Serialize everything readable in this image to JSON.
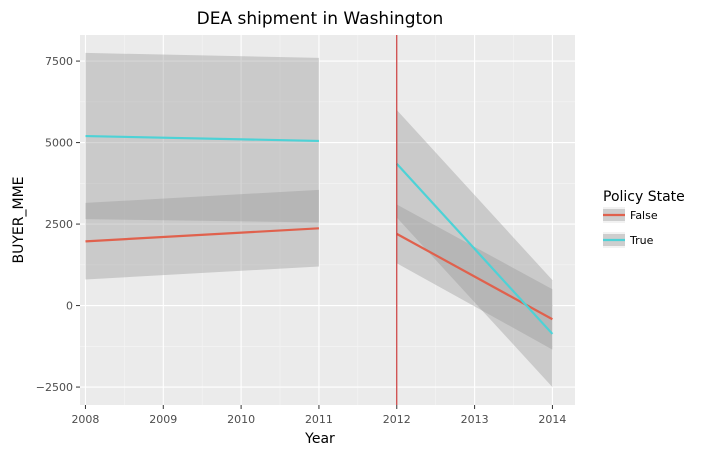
{
  "chart_data": {
    "type": "line",
    "title": "DEA shipment in Washington",
    "xlabel": "Year",
    "ylabel": "BUYER_MME",
    "x_ticks": [
      2008,
      2009,
      2010,
      2011,
      2012,
      2013,
      2014
    ],
    "y_ticks": [
      -2500,
      0,
      2500,
      5000,
      7500
    ],
    "y_tick_labels": [
      "−2500",
      "0",
      "2500",
      "5000",
      "7500"
    ],
    "xlim": [
      2007.93,
      2014.29
    ],
    "ylim": [
      -3050,
      8300
    ],
    "grid": true,
    "vline": {
      "x": 2012,
      "color": "#c62828"
    },
    "legend": {
      "title": "Policy State",
      "placement": "right"
    },
    "series": [
      {
        "name": "False",
        "color": "#e0614d",
        "segments": [
          {
            "x": [
              2008,
              2011
            ],
            "y": [
              1970,
              2370
            ],
            "ci_lower": [
              800,
              1200
            ],
            "ci_upper": [
              3150,
              3550
            ]
          },
          {
            "x": [
              2012,
              2014
            ],
            "y": [
              2200,
              -420
            ],
            "ci_lower": [
              1300,
              -1350
            ],
            "ci_upper": [
              3100,
              500
            ]
          }
        ]
      },
      {
        "name": "True",
        "color": "#4dd2d6",
        "segments": [
          {
            "x": [
              2008,
              2011
            ],
            "y": [
              5200,
              5050
            ],
            "ci_lower": [
              2650,
              2550
            ],
            "ci_upper": [
              7750,
              7600
            ]
          },
          {
            "x": [
              2012,
              2014
            ],
            "y": [
              4350,
              -870
            ],
            "ci_lower": [
              2700,
              -2500
            ],
            "ci_upper": [
              6000,
              780
            ]
          }
        ]
      }
    ]
  }
}
